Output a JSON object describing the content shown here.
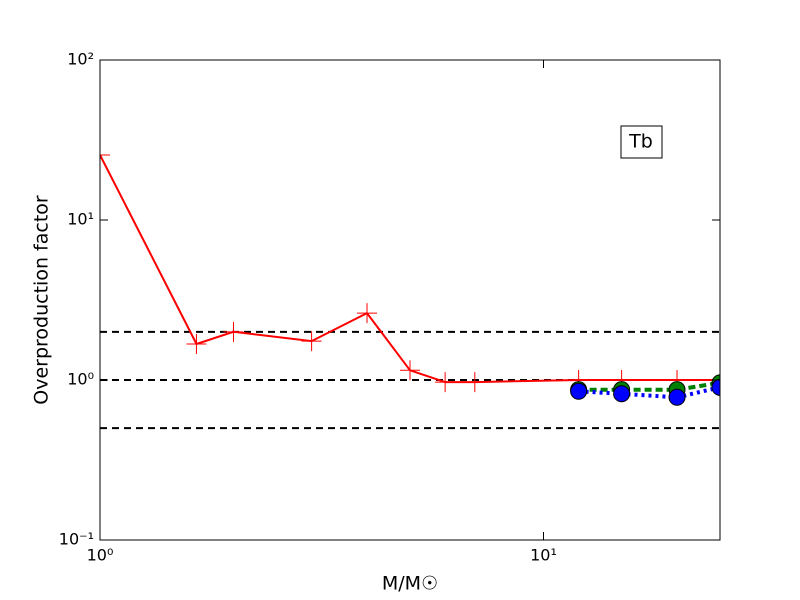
{
  "chart_data": {
    "type": "line",
    "xlabel": "M/M☉",
    "ylabel": "Overproduction factor",
    "annotation": "Tb",
    "xscale": "log",
    "yscale": "log",
    "xlim": [
      1,
      25
    ],
    "ylim": [
      0.1,
      100
    ],
    "xticks": [
      {
        "value": 1,
        "label": "10⁰"
      },
      {
        "value": 10,
        "label": "10¹"
      }
    ],
    "yticks": [
      {
        "value": 0.1,
        "label": "10⁻¹"
      },
      {
        "value": 1,
        "label": "10⁰"
      },
      {
        "value": 10,
        "label": "10¹"
      },
      {
        "value": 100,
        "label": "10²"
      }
    ],
    "reference_lines": [
      0.5,
      1,
      2
    ],
    "series": [
      {
        "color": "#ff0000",
        "linestyle": "solid",
        "marker": "plus",
        "x": [
          1,
          1.65,
          2,
          3,
          4,
          5,
          6,
          7,
          12,
          15,
          20,
          25
        ],
        "values": [
          25.5,
          1.68,
          2.0,
          1.75,
          2.62,
          1.15,
          0.97,
          0.97,
          1.0,
          1.0,
          1.0,
          1.0
        ]
      },
      {
        "color": "#008000",
        "linestyle": "dashed",
        "marker": "circle",
        "x": [
          12,
          15,
          20,
          25
        ],
        "values": [
          0.87,
          0.87,
          0.87,
          0.96
        ]
      },
      {
        "color": "#0000ff",
        "linestyle": "dotted",
        "marker": "circle",
        "x": [
          12,
          15,
          20,
          25
        ],
        "values": [
          0.85,
          0.82,
          0.78,
          0.9
        ]
      }
    ]
  }
}
